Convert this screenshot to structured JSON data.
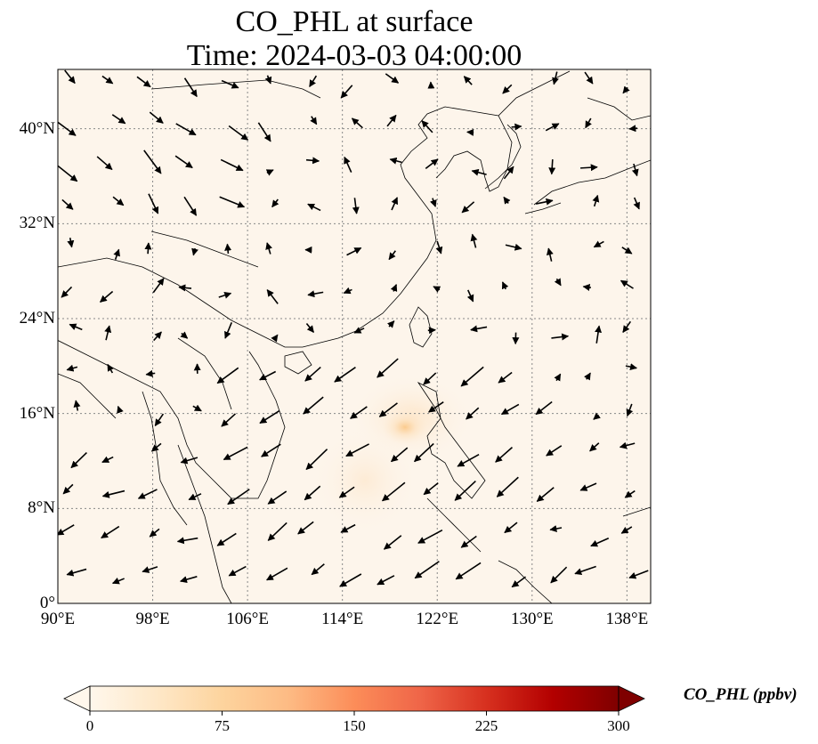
{
  "title": {
    "line1": "CO_PHL at surface",
    "line2": "Time: 2024-03-03 04:00:00"
  },
  "map": {
    "projection": "PlateCarree",
    "lon_range": [
      90,
      140
    ],
    "lat_range": [
      0,
      45
    ],
    "gridlines": "dotted gray",
    "background_color": "#fdf5eb",
    "coastline_color": "#000000",
    "plume_center": {
      "lon": 119.5,
      "lat": 15.0
    }
  },
  "axes": {
    "x_ticks": [
      "90°E",
      "98°E",
      "106°E",
      "114°E",
      "122°E",
      "130°E",
      "138°E"
    ],
    "x_values": [
      90,
      98,
      106,
      114,
      122,
      130,
      138
    ],
    "y_ticks": [
      "0°",
      "8°N",
      "16°N",
      "24°N",
      "32°N",
      "40°N"
    ],
    "y_values": [
      0,
      8,
      16,
      24,
      32,
      40
    ]
  },
  "colorbar": {
    "label": "CO_PHL (ppbv)",
    "ticks": [
      "0",
      "75",
      "150",
      "225",
      "300"
    ],
    "tick_values": [
      0,
      75,
      150,
      225,
      300
    ],
    "min": 0,
    "max": 300,
    "extend": "both",
    "colormap": "OrRd",
    "colors": [
      "#fff7ec",
      "#fee8c8",
      "#fdd49e",
      "#fdbb84",
      "#fc8d59",
      "#ef6548",
      "#d7301f",
      "#b30000",
      "#7f0000"
    ]
  },
  "wind_vectors_description": "wind arrows",
  "legend_placement": "colorbar bottom"
}
